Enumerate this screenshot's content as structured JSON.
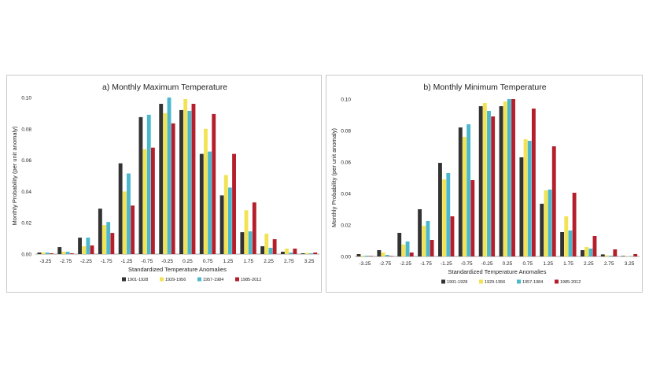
{
  "colors": {
    "series_colors": [
      "#333333",
      "#f2e354",
      "#4bb8cc",
      "#b51f2c"
    ],
    "gridline": "#d9d9d9",
    "axis": "#888888"
  },
  "chart_data": [
    {
      "type": "bar",
      "title": "a) Monthly Maximum Temperature",
      "xlabel": "Standardized Temperature Anomalies",
      "ylabel": "Monthly Probability (per unit anomaly)",
      "ylim": [
        0,
        0.1
      ],
      "yticks": [
        "0.00",
        "0.02",
        "0.04",
        "0.06",
        "0.08",
        "0.10"
      ],
      "grid": false,
      "legend_position": "bottom",
      "categories": [
        "-3.25",
        "-2.75",
        "-2.25",
        "-1.75",
        "-1.25",
        "-0.75",
        "-0.25",
        "0.25",
        "0.75",
        "1.25",
        "1.75",
        "2.25",
        "2.75",
        "3.25"
      ],
      "series": [
        {
          "name": "1901-1928",
          "values": [
            0.001,
            0.0045,
            0.0105,
            0.029,
            0.058,
            0.0875,
            0.096,
            0.092,
            0.064,
            0.0375,
            0.014,
            0.005,
            0.0015,
            0.0005
          ]
        },
        {
          "name": "1929-1956",
          "values": [
            0.001,
            0.0015,
            0.005,
            0.0185,
            0.04,
            0.067,
            0.09,
            0.099,
            0.08,
            0.0505,
            0.028,
            0.013,
            0.0035,
            0.0008
          ]
        },
        {
          "name": "1957-1984",
          "values": [
            0.001,
            0.0015,
            0.0105,
            0.0205,
            0.0515,
            0.089,
            0.1,
            0.0915,
            0.0655,
            0.0425,
            0.0145,
            0.004,
            0.001,
            0.0005
          ]
        },
        {
          "name": "1985-2012",
          "values": [
            0.0005,
            0.0005,
            0.0055,
            0.0135,
            0.031,
            0.068,
            0.0835,
            0.096,
            0.0895,
            0.064,
            0.033,
            0.0095,
            0.0035,
            0.001
          ]
        }
      ]
    },
    {
      "type": "bar",
      "title": "b) Monthly Minimum Temperature",
      "xlabel": "Standardized Temperature Anomalies",
      "ylabel": "Monthly Probability (per unit anomaly)",
      "ylim": [
        0,
        0.1
      ],
      "yticks": [
        "0.00",
        "0.02",
        "0.04",
        "0.06",
        "0.08",
        "0.10"
      ],
      "grid": false,
      "legend_position": "bottom",
      "categories": [
        "-3.25",
        "-2.75",
        "-2.25",
        "-1.75",
        "-1.25",
        "-0.75",
        "-0.25",
        "0.25",
        "0.75",
        "1.25",
        "1.75",
        "2.25",
        "2.75",
        "3.25"
      ],
      "series": [
        {
          "name": "1901-1928",
          "values": [
            0.0015,
            0.004,
            0.015,
            0.03,
            0.0595,
            0.082,
            0.0955,
            0.0955,
            0.063,
            0.0335,
            0.0155,
            0.004,
            0.0013,
            0.0003
          ]
        },
        {
          "name": "1929-1956",
          "values": [
            0.0005,
            0.0025,
            0.0075,
            0.0195,
            0.049,
            0.076,
            0.0975,
            0.0985,
            0.0745,
            0.042,
            0.0255,
            0.006,
            0.0007,
            0.0002
          ]
        },
        {
          "name": "1957-1984",
          "values": [
            0.0005,
            0.001,
            0.0095,
            0.0225,
            0.053,
            0.084,
            0.0925,
            0.1,
            0.0735,
            0.0425,
            0.0165,
            0.005,
            0.0005,
            0.0002
          ]
        },
        {
          "name": "1985-2012",
          "values": [
            0.0003,
            0.0003,
            0.0025,
            0.0105,
            0.0255,
            0.0485,
            0.089,
            0.1,
            0.094,
            0.07,
            0.0405,
            0.013,
            0.0045,
            0.0015
          ]
        }
      ]
    }
  ]
}
